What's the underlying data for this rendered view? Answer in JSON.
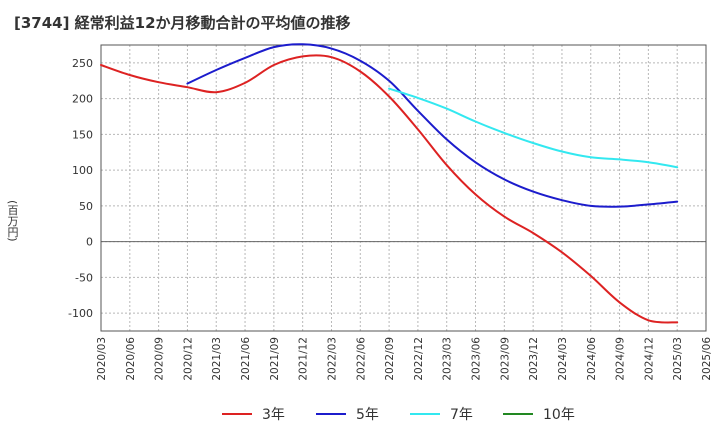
{
  "chart_data": {
    "type": "line",
    "title": "[3744]  経常利益12か月移動合計の平均値の推移",
    "xlabel": "",
    "ylabel": "(百万円)",
    "ylim": [
      -125,
      275
    ],
    "yticks": [
      250,
      200,
      150,
      100,
      50,
      0,
      -50,
      -100
    ],
    "xticks": [
      "2020/03",
      "2020/06",
      "2020/09",
      "2020/12",
      "2021/03",
      "2021/06",
      "2021/09",
      "2021/12",
      "2022/03",
      "2022/06",
      "2022/09",
      "2022/12",
      "2023/03",
      "2023/06",
      "2023/09",
      "2023/12",
      "2024/03",
      "2024/06",
      "2024/09",
      "2024/12",
      "2025/03",
      "2025/06"
    ],
    "grid": true,
    "legend_position": "bottom",
    "series": [
      {
        "name": "3年",
        "color": "#dd2222",
        "points": [
          [
            "2020/03",
            247
          ],
          [
            "2020/06",
            233
          ],
          [
            "2020/09",
            223
          ],
          [
            "2020/12",
            216
          ],
          [
            "2021/03",
            209
          ],
          [
            "2021/06",
            222
          ],
          [
            "2021/09",
            247
          ],
          [
            "2021/12",
            259
          ],
          [
            "2022/03",
            258
          ],
          [
            "2022/06",
            238
          ],
          [
            "2022/09",
            203
          ],
          [
            "2022/12",
            157
          ],
          [
            "2023/03",
            107
          ],
          [
            "2023/06",
            66
          ],
          [
            "2023/09",
            35
          ],
          [
            "2023/12",
            12
          ],
          [
            "2024/03",
            -15
          ],
          [
            "2024/06",
            -48
          ],
          [
            "2024/09",
            -85
          ],
          [
            "2024/12",
            -110
          ],
          [
            "2025/03",
            -113
          ]
        ]
      },
      {
        "name": "5年",
        "color": "#1c1ccc",
        "points": [
          [
            "2020/12",
            221
          ],
          [
            "2021/03",
            240
          ],
          [
            "2021/06",
            257
          ],
          [
            "2021/09",
            272
          ],
          [
            "2021/12",
            276
          ],
          [
            "2022/03",
            270
          ],
          [
            "2022/06",
            253
          ],
          [
            "2022/09",
            225
          ],
          [
            "2022/12",
            183
          ],
          [
            "2023/03",
            143
          ],
          [
            "2023/06",
            111
          ],
          [
            "2023/09",
            87
          ],
          [
            "2023/12",
            70
          ],
          [
            "2024/03",
            58
          ],
          [
            "2024/06",
            50
          ],
          [
            "2024/09",
            49
          ],
          [
            "2024/12",
            52
          ],
          [
            "2025/03",
            56
          ]
        ]
      },
      {
        "name": "7年",
        "color": "#33e8f0",
        "points": [
          [
            "2022/09",
            214
          ],
          [
            "2022/12",
            201
          ],
          [
            "2023/03",
            186
          ],
          [
            "2023/06",
            168
          ],
          [
            "2023/09",
            152
          ],
          [
            "2023/12",
            138
          ],
          [
            "2024/03",
            126
          ],
          [
            "2024/06",
            118
          ],
          [
            "2024/09",
            115
          ],
          [
            "2024/12",
            111
          ],
          [
            "2025/03",
            104
          ]
        ]
      },
      {
        "name": "10年",
        "color": "#228822",
        "points": []
      }
    ]
  }
}
